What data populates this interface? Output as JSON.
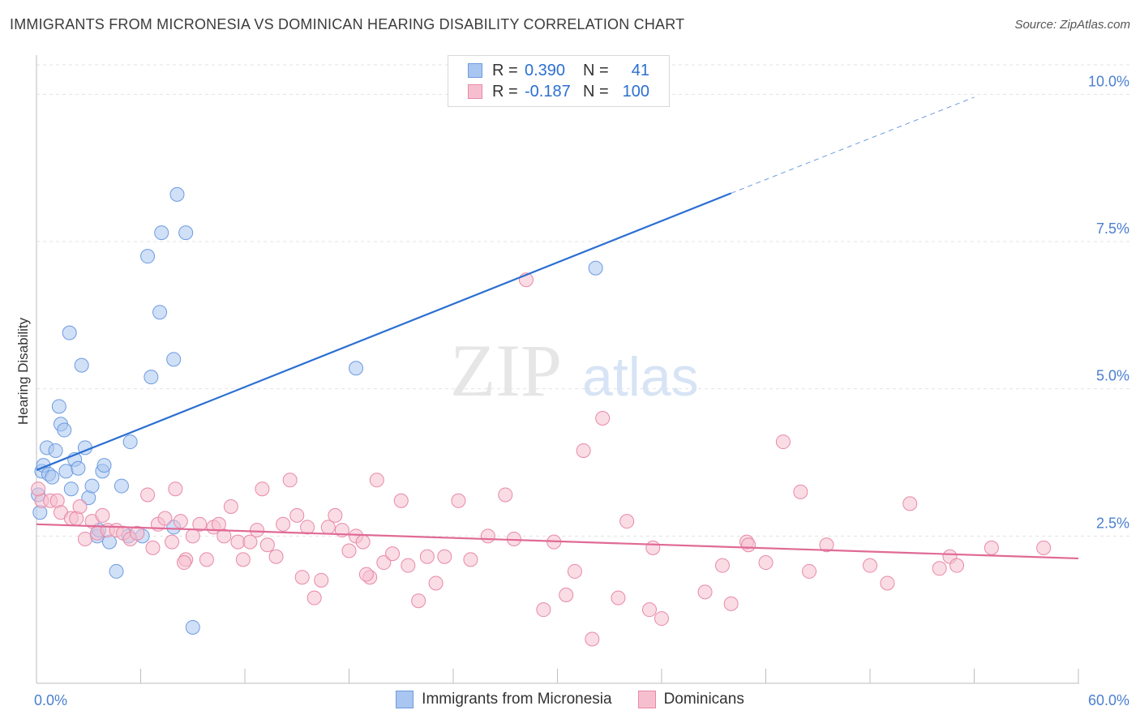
{
  "title": "IMMIGRANTS FROM MICRONESIA VS DOMINICAN HEARING DISABILITY CORRELATION CHART",
  "source": "Source: ZipAtlas.com",
  "watermark": {
    "part1": "ZIP",
    "part2": "atlas"
  },
  "legend": {
    "rows": [
      {
        "r_label": "R =",
        "r_value": "0.390",
        "n_label": "N =",
        "n_value": "41",
        "color": "#a9c6f0",
        "border": "#6d9be0"
      },
      {
        "r_label": "R =",
        "r_value": "-0.187",
        "n_label": "N =",
        "n_value": "100",
        "color": "#f6bfd0",
        "border": "#e889a8"
      }
    ]
  },
  "bottom_legend": [
    {
      "label": "Immigrants from Micronesia",
      "color": "#a9c6f0",
      "border": "#6d9be0"
    },
    {
      "label": "Dominicans",
      "color": "#f6bfd0",
      "border": "#e889a8"
    }
  ],
  "chart_data": {
    "type": "scatter",
    "title": "IMMIGRANTS FROM MICRONESIA VS DOMINICAN HEARING DISABILITY CORRELATION CHART",
    "xlabel": "",
    "ylabel": "Hearing Disability",
    "xlim": [
      0,
      60
    ],
    "ylim": [
      0,
      10.5
    ],
    "x_tick_labels": [
      "0.0%",
      "60.0%"
    ],
    "y_ticks": [
      {
        "value": 2.5,
        "label": "2.5%"
      },
      {
        "value": 5.0,
        "label": "5.0%"
      },
      {
        "value": 7.5,
        "label": "7.5%"
      },
      {
        "value": 10.0,
        "label": "10.0%"
      }
    ],
    "grid": true,
    "series": [
      {
        "name": "Immigrants from Micronesia",
        "color": "#a9c6f0",
        "stroke": "#6d9be0",
        "trend_color": "#2b6fd1",
        "trend": {
          "x0": 0,
          "y0": 3.62,
          "x1": 40,
          "y1": 8.32,
          "dash_x1": 54,
          "dash_y1": 9.95
        },
        "points": [
          [
            0.2,
            2.9
          ],
          [
            0.3,
            3.6
          ],
          [
            0.4,
            3.7
          ],
          [
            0.6,
            4.0
          ],
          [
            0.7,
            3.55
          ],
          [
            0.9,
            3.5
          ],
          [
            1.1,
            3.95
          ],
          [
            1.3,
            4.7
          ],
          [
            1.4,
            4.4
          ],
          [
            1.6,
            4.3
          ],
          [
            1.7,
            3.6
          ],
          [
            1.9,
            5.95
          ],
          [
            2.0,
            3.3
          ],
          [
            2.2,
            3.8
          ],
          [
            2.4,
            3.65
          ],
          [
            2.6,
            5.4
          ],
          [
            2.8,
            4.0
          ],
          [
            3.0,
            3.15
          ],
          [
            3.2,
            3.35
          ],
          [
            3.5,
            2.5
          ],
          [
            3.6,
            2.6
          ],
          [
            3.8,
            3.6
          ],
          [
            3.9,
            3.7
          ],
          [
            4.2,
            2.4
          ],
          [
            4.6,
            1.9
          ],
          [
            4.9,
            3.35
          ],
          [
            5.3,
            2.5
          ],
          [
            5.4,
            4.1
          ],
          [
            6.1,
            2.5
          ],
          [
            6.4,
            7.25
          ],
          [
            6.6,
            5.2
          ],
          [
            7.1,
            6.3
          ],
          [
            7.2,
            7.65
          ],
          [
            7.9,
            5.5
          ],
          [
            7.9,
            2.65
          ],
          [
            8.1,
            8.3
          ],
          [
            8.6,
            7.65
          ],
          [
            9.0,
            0.95
          ],
          [
            18.4,
            5.35
          ],
          [
            32.2,
            7.05
          ],
          [
            0.1,
            3.2
          ]
        ]
      },
      {
        "name": "Dominicans",
        "color": "#f6bfd0",
        "stroke": "#e889a8",
        "trend_color": "#e06a95",
        "trend": {
          "x0": 0,
          "y0": 2.7,
          "x1": 60,
          "y1": 2.12
        },
        "points": [
          [
            0.3,
            3.1
          ],
          [
            0.8,
            3.1
          ],
          [
            1.2,
            3.1
          ],
          [
            1.4,
            2.9
          ],
          [
            2.0,
            2.8
          ],
          [
            2.3,
            2.8
          ],
          [
            2.5,
            3.0
          ],
          [
            2.8,
            2.45
          ],
          [
            3.2,
            2.75
          ],
          [
            3.5,
            2.55
          ],
          [
            3.8,
            2.85
          ],
          [
            4.1,
            2.6
          ],
          [
            4.6,
            2.6
          ],
          [
            5.0,
            2.55
          ],
          [
            5.4,
            2.45
          ],
          [
            5.8,
            2.55
          ],
          [
            6.4,
            3.2
          ],
          [
            6.7,
            2.3
          ],
          [
            7.0,
            2.7
          ],
          [
            7.4,
            2.8
          ],
          [
            7.8,
            2.4
          ],
          [
            8.0,
            3.3
          ],
          [
            8.3,
            2.75
          ],
          [
            8.6,
            2.1
          ],
          [
            9.0,
            2.5
          ],
          [
            9.4,
            2.7
          ],
          [
            9.8,
            2.1
          ],
          [
            10.2,
            2.65
          ],
          [
            10.5,
            2.7
          ],
          [
            10.8,
            2.5
          ],
          [
            11.2,
            3.0
          ],
          [
            11.6,
            2.4
          ],
          [
            11.9,
            2.1
          ],
          [
            12.3,
            2.4
          ],
          [
            12.7,
            2.6
          ],
          [
            13.0,
            3.3
          ],
          [
            13.3,
            2.35
          ],
          [
            13.8,
            2.15
          ],
          [
            14.2,
            2.7
          ],
          [
            14.6,
            3.45
          ],
          [
            15.0,
            2.85
          ],
          [
            15.3,
            1.8
          ],
          [
            15.6,
            2.65
          ],
          [
            16.0,
            1.45
          ],
          [
            16.4,
            1.75
          ],
          [
            16.8,
            2.65
          ],
          [
            17.2,
            2.85
          ],
          [
            17.6,
            2.6
          ],
          [
            18.0,
            2.25
          ],
          [
            18.4,
            2.5
          ],
          [
            18.8,
            2.4
          ],
          [
            19.2,
            1.8
          ],
          [
            19.6,
            3.45
          ],
          [
            20.0,
            2.05
          ],
          [
            20.5,
            2.2
          ],
          [
            21.0,
            3.1
          ],
          [
            21.4,
            2.0
          ],
          [
            22.0,
            1.4
          ],
          [
            22.5,
            2.15
          ],
          [
            23.0,
            1.7
          ],
          [
            23.5,
            2.15
          ],
          [
            24.3,
            3.1
          ],
          [
            25.0,
            2.1
          ],
          [
            26.0,
            2.5
          ],
          [
            27.0,
            3.2
          ],
          [
            27.5,
            2.45
          ],
          [
            28.2,
            6.85
          ],
          [
            29.2,
            1.25
          ],
          [
            29.8,
            2.4
          ],
          [
            30.5,
            1.5
          ],
          [
            31.0,
            1.9
          ],
          [
            31.5,
            3.95
          ],
          [
            32.0,
            0.75
          ],
          [
            32.6,
            4.5
          ],
          [
            33.5,
            1.45
          ],
          [
            34.0,
            2.75
          ],
          [
            35.3,
            1.25
          ],
          [
            35.5,
            2.3
          ],
          [
            36.0,
            1.1
          ],
          [
            38.5,
            1.55
          ],
          [
            39.5,
            2.0
          ],
          [
            40.0,
            1.35
          ],
          [
            40.9,
            2.4
          ],
          [
            41.0,
            2.35
          ],
          [
            42.0,
            2.05
          ],
          [
            43.0,
            4.1
          ],
          [
            44.0,
            3.25
          ],
          [
            44.5,
            1.9
          ],
          [
            45.5,
            2.35
          ],
          [
            48.0,
            2.0
          ],
          [
            49.0,
            1.7
          ],
          [
            50.3,
            3.05
          ],
          [
            52.0,
            1.95
          ],
          [
            52.6,
            2.15
          ],
          [
            53.0,
            2.0
          ],
          [
            55.0,
            2.3
          ],
          [
            58.0,
            2.3
          ],
          [
            8.5,
            2.05
          ],
          [
            19.0,
            1.85
          ],
          [
            0.1,
            3.3
          ]
        ]
      }
    ]
  }
}
